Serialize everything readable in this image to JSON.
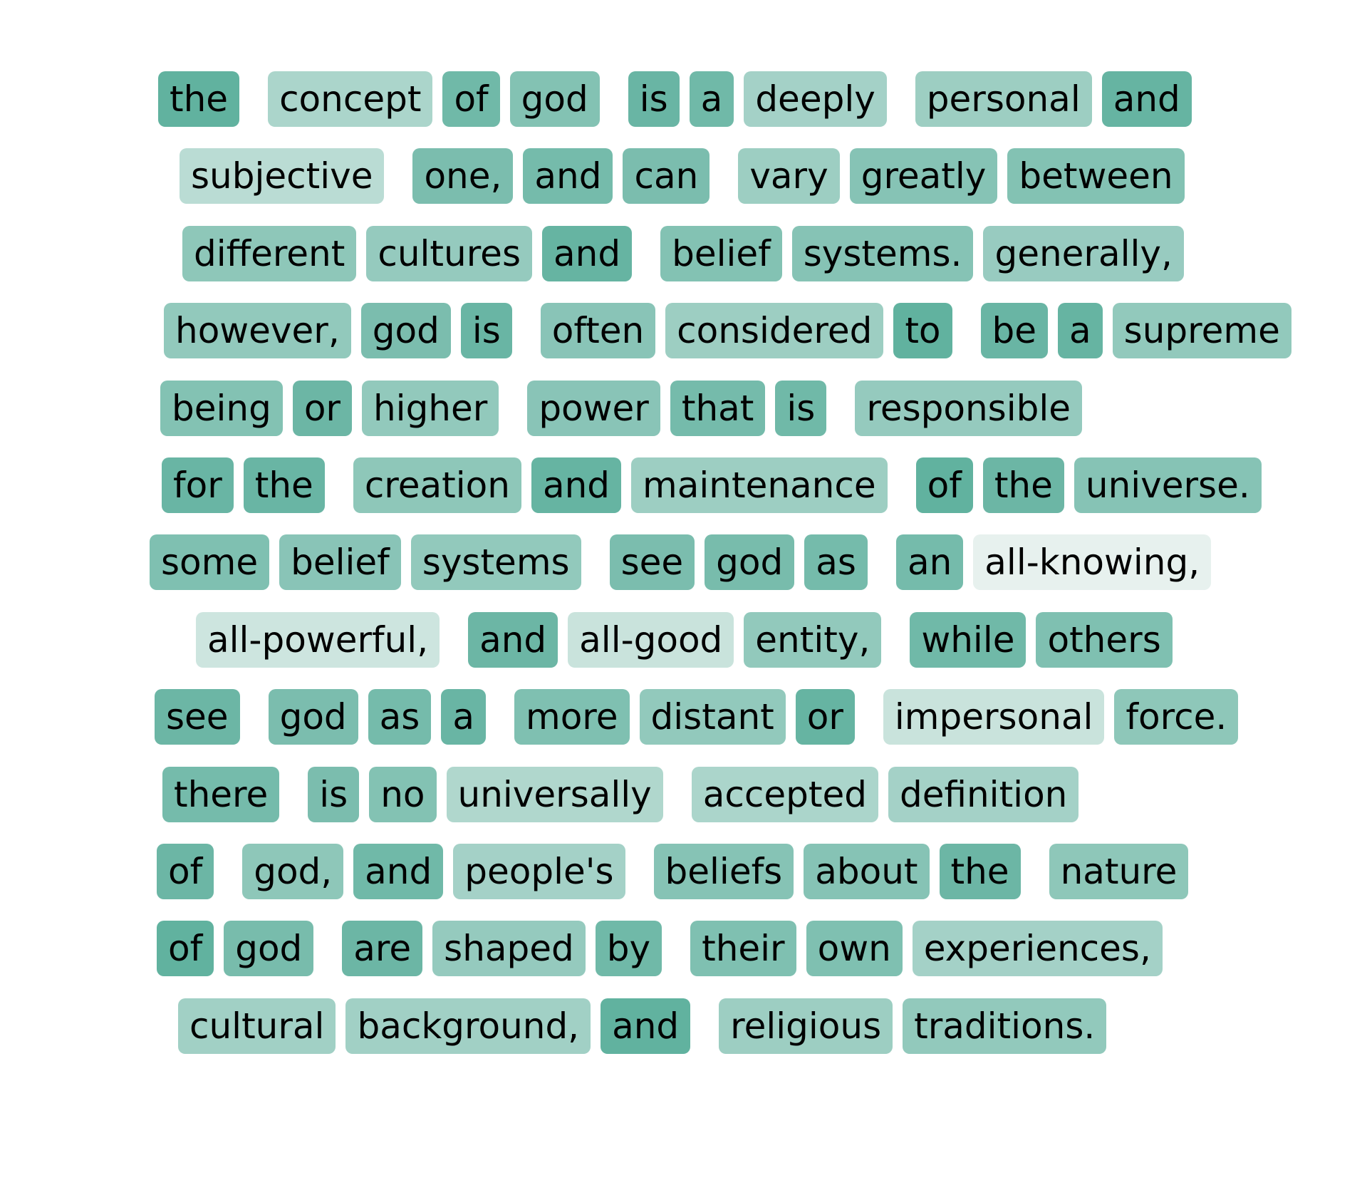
{
  "color_scale": {
    "low": "#eef4f2",
    "high": "#5aae9b"
  },
  "tokens": [
    [
      "the",
      0.95
    ],
    [
      "concept",
      0.45
    ],
    [
      "of",
      0.85
    ],
    [
      "god",
      0.72
    ],
    [
      "is",
      0.9
    ],
    [
      "a",
      0.85
    ],
    [
      "deeply",
      0.5
    ],
    [
      "personal",
      0.55
    ],
    [
      "and",
      0.92
    ],
    [
      "subjective",
      0.35
    ],
    [
      "one,",
      0.78
    ],
    [
      "and",
      0.82
    ],
    [
      "can",
      0.78
    ],
    [
      "vary",
      0.55
    ],
    [
      "greatly",
      0.7
    ],
    [
      "between",
      0.72
    ],
    [
      "different",
      0.65
    ],
    [
      "cultures",
      0.6
    ],
    [
      "and",
      0.92
    ],
    [
      "belief",
      0.72
    ],
    [
      "systems.",
      0.7
    ],
    [
      "generally,",
      0.58
    ],
    [
      "however,",
      0.62
    ],
    [
      "god",
      0.78
    ],
    [
      "is",
      0.9
    ],
    [
      "often",
      0.68
    ],
    [
      "considered",
      0.55
    ],
    [
      "to",
      0.95
    ],
    [
      "be",
      0.9
    ],
    [
      "a",
      0.92
    ],
    [
      "supreme",
      0.62
    ],
    [
      "being",
      0.72
    ],
    [
      "or",
      0.88
    ],
    [
      "higher",
      0.62
    ],
    [
      "power",
      0.68
    ],
    [
      "that",
      0.82
    ],
    [
      "is",
      0.85
    ],
    [
      "responsible",
      0.6
    ],
    [
      "for",
      0.9
    ],
    [
      "the",
      0.9
    ],
    [
      "creation",
      0.65
    ],
    [
      "and",
      0.92
    ],
    [
      "maintenance",
      0.55
    ],
    [
      "of",
      0.95
    ],
    [
      "the",
      0.88
    ],
    [
      "universe.",
      0.7
    ],
    [
      "some",
      0.75
    ],
    [
      "belief",
      0.68
    ],
    [
      "systems",
      0.62
    ],
    [
      "see",
      0.78
    ],
    [
      "god",
      0.8
    ],
    [
      "as",
      0.82
    ],
    [
      "an",
      0.82
    ],
    [
      "all-knowing,",
      0.05
    ],
    [
      "all-powerful,",
      0.22
    ],
    [
      "and",
      0.88
    ],
    [
      "all-good",
      0.25
    ],
    [
      "entity,",
      0.62
    ],
    [
      "while",
      0.85
    ],
    [
      "others",
      0.75
    ],
    [
      "see",
      0.88
    ],
    [
      "god",
      0.78
    ],
    [
      "as",
      0.82
    ],
    [
      "a",
      0.9
    ],
    [
      "more",
      0.75
    ],
    [
      "distant",
      0.62
    ],
    [
      "or",
      0.92
    ],
    [
      "impersonal",
      0.25
    ],
    [
      "force.",
      0.65
    ],
    [
      "there",
      0.82
    ],
    [
      "is",
      0.78
    ],
    [
      "no",
      0.72
    ],
    [
      "universally",
      0.42
    ],
    [
      "accepted",
      0.45
    ],
    [
      "definition",
      0.5
    ],
    [
      "of",
      0.88
    ],
    [
      "god,",
      0.65
    ],
    [
      "and",
      0.85
    ],
    [
      "people's",
      0.5
    ],
    [
      "beliefs",
      0.7
    ],
    [
      "about",
      0.7
    ],
    [
      "the",
      0.88
    ],
    [
      "nature",
      0.65
    ],
    [
      "of",
      0.95
    ],
    [
      "god",
      0.8
    ],
    [
      "are",
      0.88
    ],
    [
      "shaped",
      0.6
    ],
    [
      "by",
      0.85
    ],
    [
      "their",
      0.75
    ],
    [
      "own",
      0.75
    ],
    [
      "experiences,",
      0.5
    ],
    [
      "cultural",
      0.52
    ],
    [
      "background,",
      0.52
    ],
    [
      "and",
      0.95
    ],
    [
      "religious",
      0.55
    ],
    [
      "traditions.",
      0.62
    ]
  ]
}
